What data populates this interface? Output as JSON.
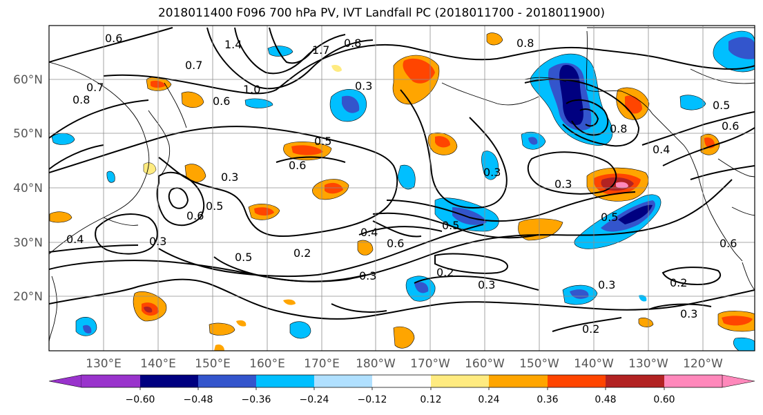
{
  "title": "2018011400 F096 700 hPa PV, IVT Landfall PC (2018011700 - 2018011900)",
  "lat_labels": [
    "60°N",
    "50°N",
    "40°N",
    "30°N",
    "20°N"
  ],
  "lon_labels": [
    "130°E",
    "140°E",
    "150°E",
    "160°E",
    "170°E",
    "180°W",
    "170°W",
    "160°W",
    "150°W",
    "140°W",
    "130°W",
    "120°W"
  ],
  "colorbar": {
    "colors": [
      "#9933cc",
      "#000080",
      "#3355cc",
      "#00bfff",
      "#b0e0ff",
      "#ffffff",
      "#ffeb80",
      "#ffa500",
      "#ff4500",
      "#b22222",
      "#ff88bb"
    ],
    "tick_labels": [
      "−0.60",
      "−0.48",
      "−0.36",
      "−0.24",
      "−0.12",
      "0.12",
      "0.24",
      "0.36",
      "0.48",
      "0.60"
    ]
  },
  "contour_labels": [
    "0.6",
    "0.7",
    "0.8",
    "1.4",
    "1.7",
    "0.8",
    "1.0",
    "0.6",
    "0.3",
    "0.8",
    "0.7",
    "0.8",
    "0.5",
    "0.6",
    "0.4",
    "0.5",
    "0.6",
    "0.3",
    "0.3",
    "0.6",
    "0.5",
    "0.3",
    "0.4",
    "0.2",
    "0.5",
    "0.4",
    "0.6",
    "0.5",
    "0.3",
    "0.2",
    "0.3",
    "0.3",
    "0.3",
    "0.2",
    "0.2",
    "0.3",
    "0.5",
    "0.6"
  ]
}
